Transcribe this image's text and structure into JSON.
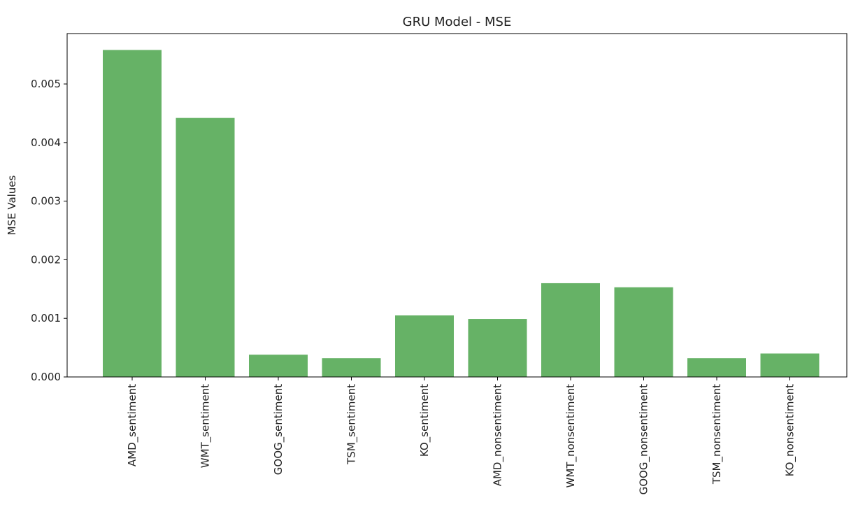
{
  "chart_data": {
    "type": "bar",
    "title": "GRU Model - MSE",
    "xlabel": "",
    "ylabel": "MSE Values",
    "categories": [
      "AMD_sentiment",
      "WMT_sentiment",
      "GOOG_sentiment",
      "TSM_sentiment",
      "KO_sentiment",
      "AMD_nonsentiment",
      "WMT_nonsentiment",
      "GOOG_nonsentiment",
      "TSM_nonsentiment",
      "KO_nonsentiment"
    ],
    "values": [
      0.00558,
      0.00442,
      0.00038,
      0.00032,
      0.00105,
      0.00099,
      0.0016,
      0.00153,
      0.00032,
      0.0004
    ],
    "ylim": [
      0,
      0.00586
    ],
    "yticks": [
      0,
      0.001,
      0.002,
      0.003,
      0.004,
      0.005
    ],
    "ytick_labels": [
      "0.000",
      "0.001",
      "0.002",
      "0.003",
      "0.004",
      "0.005"
    ],
    "bar_color": "#66b266",
    "grid": false,
    "legend": "none"
  }
}
